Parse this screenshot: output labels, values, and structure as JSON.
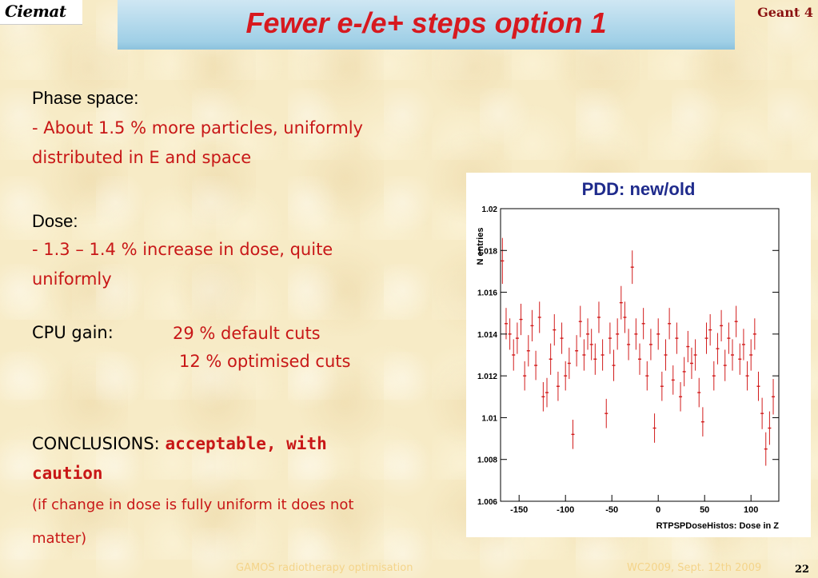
{
  "logo_text": "Ciemat",
  "title": "Fewer e-/e+ steps option 1",
  "brand": "Geant 4",
  "phase_space": {
    "heading": "Phase space:",
    "line1": "- About 1.5 % more particles, uniformly",
    "line2": "distributed in E and space"
  },
  "dose": {
    "heading": "Dose:",
    "line1": "- 1.3 – 1.4 % increase in dose, quite",
    "line2": "uniformly"
  },
  "cpu": {
    "label": "CPU gain:",
    "line1": "29 %  default cuts",
    "line2": "12 %  optimised cuts"
  },
  "conclusions": {
    "label": "CONCLUSIONS: ",
    "bold1": "acceptable, with",
    "bold2": "caution",
    "note1": "(if change in dose is fully uniform it does not",
    "note2": "matter)"
  },
  "footer": {
    "left": "GAMOS radiotherapy optimisation",
    "right": "WC2009, Sept. 12th 2009",
    "page": "22"
  },
  "chart_data": {
    "type": "scatter",
    "title": "PDD: new/old",
    "xlabel": "RTPSPDoseHistos: Dose in Z",
    "ylabel": "N entries",
    "xlim": [
      -170,
      130
    ],
    "ylim": [
      1.006,
      1.02
    ],
    "x_ticks": [
      -150,
      -100,
      -50,
      0,
      50,
      100
    ],
    "y_ticks": [
      1.006,
      1.008,
      1.01,
      1.012,
      1.014,
      1.016,
      1.018,
      1.02
    ],
    "color": "#d21c1c",
    "points": [
      {
        "x": -168,
        "y": 1.0175,
        "e": 0.0022
      },
      {
        "x": -164,
        "y": 1.0145,
        "e": 0.0015
      },
      {
        "x": -160,
        "y": 1.014,
        "e": 0.0015
      },
      {
        "x": -156,
        "y": 1.013,
        "e": 0.0015
      },
      {
        "x": -152,
        "y": 1.0138,
        "e": 0.0015
      },
      {
        "x": -148,
        "y": 1.0147,
        "e": 0.0015
      },
      {
        "x": -144,
        "y": 1.012,
        "e": 0.0014
      },
      {
        "x": -140,
        "y": 1.0132,
        "e": 0.0015
      },
      {
        "x": -136,
        "y": 1.0144,
        "e": 0.0015
      },
      {
        "x": -132,
        "y": 1.0125,
        "e": 0.0014
      },
      {
        "x": -128,
        "y": 1.0148,
        "e": 0.0015
      },
      {
        "x": -124,
        "y": 1.011,
        "e": 0.0014
      },
      {
        "x": -120,
        "y": 1.0112,
        "e": 0.0014
      },
      {
        "x": -116,
        "y": 1.0128,
        "e": 0.0015
      },
      {
        "x": -112,
        "y": 1.0142,
        "e": 0.0015
      },
      {
        "x": -108,
        "y": 1.0115,
        "e": 0.0014
      },
      {
        "x": -104,
        "y": 1.0138,
        "e": 0.0015
      },
      {
        "x": -100,
        "y": 1.012,
        "e": 0.0014
      },
      {
        "x": -96,
        "y": 1.0126,
        "e": 0.0015
      },
      {
        "x": -92,
        "y": 1.0092,
        "e": 0.0014
      },
      {
        "x": -88,
        "y": 1.0132,
        "e": 0.0015
      },
      {
        "x": -84,
        "y": 1.0146,
        "e": 0.0015
      },
      {
        "x": -80,
        "y": 1.013,
        "e": 0.0015
      },
      {
        "x": -76,
        "y": 1.014,
        "e": 0.0015
      },
      {
        "x": -72,
        "y": 1.0135,
        "e": 0.0015
      },
      {
        "x": -68,
        "y": 1.0128,
        "e": 0.0015
      },
      {
        "x": -64,
        "y": 1.0148,
        "e": 0.0015
      },
      {
        "x": -60,
        "y": 1.013,
        "e": 0.0015
      },
      {
        "x": -56,
        "y": 1.0102,
        "e": 0.0014
      },
      {
        "x": -52,
        "y": 1.0138,
        "e": 0.0015
      },
      {
        "x": -48,
        "y": 1.0125,
        "e": 0.0015
      },
      {
        "x": -44,
        "y": 1.014,
        "e": 0.0015
      },
      {
        "x": -40,
        "y": 1.0155,
        "e": 0.0016
      },
      {
        "x": -36,
        "y": 1.0148,
        "e": 0.0015
      },
      {
        "x": -32,
        "y": 1.0135,
        "e": 0.0015
      },
      {
        "x": -28,
        "y": 1.0172,
        "e": 0.0016
      },
      {
        "x": -24,
        "y": 1.014,
        "e": 0.0015
      },
      {
        "x": -20,
        "y": 1.0128,
        "e": 0.0015
      },
      {
        "x": -16,
        "y": 1.0145,
        "e": 0.0015
      },
      {
        "x": -12,
        "y": 1.012,
        "e": 0.0014
      },
      {
        "x": -8,
        "y": 1.0135,
        "e": 0.0015
      },
      {
        "x": -4,
        "y": 1.0095,
        "e": 0.0014
      },
      {
        "x": 0,
        "y": 1.014,
        "e": 0.0015
      },
      {
        "x": 4,
        "y": 1.0115,
        "e": 0.0014
      },
      {
        "x": 8,
        "y": 1.013,
        "e": 0.0015
      },
      {
        "x": 12,
        "y": 1.0145,
        "e": 0.0015
      },
      {
        "x": 16,
        "y": 1.0118,
        "e": 0.0014
      },
      {
        "x": 20,
        "y": 1.0138,
        "e": 0.0015
      },
      {
        "x": 24,
        "y": 1.011,
        "e": 0.0014
      },
      {
        "x": 28,
        "y": 1.0122,
        "e": 0.0014
      },
      {
        "x": 32,
        "y": 1.0134,
        "e": 0.0015
      },
      {
        "x": 36,
        "y": 1.0126,
        "e": 0.0015
      },
      {
        "x": 40,
        "y": 1.013,
        "e": 0.0015
      },
      {
        "x": 44,
        "y": 1.0112,
        "e": 0.0014
      },
      {
        "x": 48,
        "y": 1.0098,
        "e": 0.0014
      },
      {
        "x": 52,
        "y": 1.0138,
        "e": 0.0015
      },
      {
        "x": 56,
        "y": 1.0142,
        "e": 0.0015
      },
      {
        "x": 60,
        "y": 1.012,
        "e": 0.0014
      },
      {
        "x": 64,
        "y": 1.0133,
        "e": 0.0015
      },
      {
        "x": 68,
        "y": 1.0144,
        "e": 0.0015
      },
      {
        "x": 72,
        "y": 1.0125,
        "e": 0.0015
      },
      {
        "x": 76,
        "y": 1.0138,
        "e": 0.0015
      },
      {
        "x": 80,
        "y": 1.013,
        "e": 0.0015
      },
      {
        "x": 84,
        "y": 1.0146,
        "e": 0.0015
      },
      {
        "x": 88,
        "y": 1.0128,
        "e": 0.0015
      },
      {
        "x": 92,
        "y": 1.0135,
        "e": 0.0015
      },
      {
        "x": 96,
        "y": 1.012,
        "e": 0.0014
      },
      {
        "x": 100,
        "y": 1.013,
        "e": 0.0015
      },
      {
        "x": 104,
        "y": 1.014,
        "e": 0.0015
      },
      {
        "x": 108,
        "y": 1.0115,
        "e": 0.0014
      },
      {
        "x": 112,
        "y": 1.0102,
        "e": 0.0015
      },
      {
        "x": 116,
        "y": 1.0085,
        "e": 0.0016
      },
      {
        "x": 120,
        "y": 1.0095,
        "e": 0.0016
      },
      {
        "x": 124,
        "y": 1.011,
        "e": 0.0017
      }
    ]
  }
}
